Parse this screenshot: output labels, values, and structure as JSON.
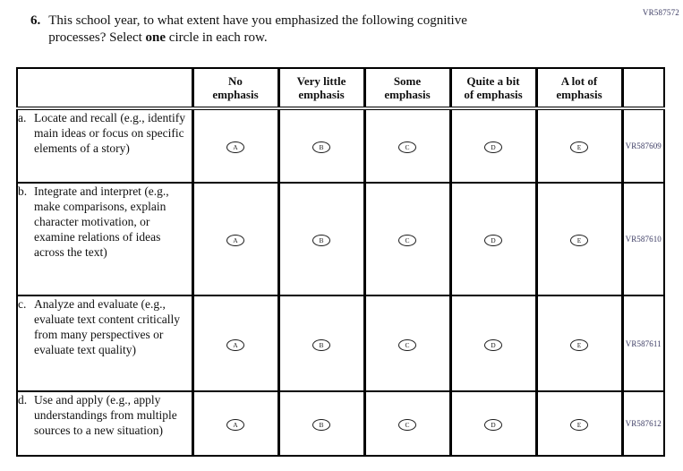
{
  "page": {
    "top_right_code": "VR587572"
  },
  "question": {
    "number": "6.",
    "line1": "This school year, to what extent have you emphasized the following cognitive",
    "line2_pre": "processes? Select ",
    "line2_bold": "one",
    "line2_post": " circle in each row."
  },
  "table": {
    "column_headers": [
      [
        "No",
        "emphasis"
      ],
      [
        "Very little",
        "emphasis"
      ],
      [
        "Some",
        "emphasis"
      ],
      [
        "Quite a bit",
        "of emphasis"
      ],
      [
        "A lot of",
        "emphasis"
      ]
    ],
    "answer_letters": [
      "A",
      "B",
      "C",
      "D",
      "E"
    ],
    "rows": [
      {
        "letter": "a.",
        "label": "Locate and recall (e.g., identify main ideas or focus on specific elements of a story)",
        "code": "VR587609"
      },
      {
        "letter": "b.",
        "label": "Integrate and interpret (e.g., make comparisons, explain character motivation, or examine relations of ideas across the text)",
        "code": "VR587610"
      },
      {
        "letter": "c.",
        "label": "Analyze and evaluate (e.g., evaluate text content critically from many perspectives or evaluate text quality)",
        "code": "VR587611"
      },
      {
        "letter": "d.",
        "label": "Use and apply (e.g., apply understandings from multiple sources to a new situation)",
        "code": "VR587612"
      }
    ]
  },
  "colors": {
    "text": "#111111",
    "border": "#000000",
    "code_text": "#3b3b63"
  }
}
